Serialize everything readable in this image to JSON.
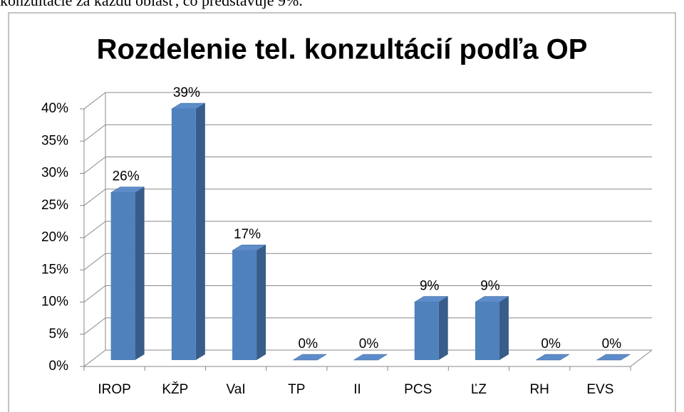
{
  "intro_text": "konzultácie za každú oblasť, čo predstavuje 9%.",
  "chart_data": {
    "type": "bar3d",
    "title": "Rozdelenie tel. konzultácií podľa OP",
    "categories": [
      "IROP",
      "KŽP",
      "VaI",
      "TP",
      "II",
      "PCS",
      "ĽZ",
      "RH",
      "EVS"
    ],
    "values": [
      26,
      39,
      17,
      0,
      0,
      9,
      9,
      0,
      0
    ],
    "value_labels": [
      "26%",
      "39%",
      "17%",
      "0%",
      "0%",
      "9%",
      "9%",
      "0%",
      "0%"
    ],
    "color": "#4f81bd",
    "ylim": [
      0,
      40
    ],
    "yticks": [
      {
        "value": 0,
        "label": "0%"
      },
      {
        "value": 5,
        "label": "5%"
      },
      {
        "value": 10,
        "label": "10%"
      },
      {
        "value": 15,
        "label": "15%"
      },
      {
        "value": 20,
        "label": "20%"
      },
      {
        "value": 25,
        "label": "25%"
      },
      {
        "value": 30,
        "label": "30%"
      },
      {
        "value": 35,
        "label": "35%"
      },
      {
        "value": 40,
        "label": "40%"
      }
    ],
    "grid": true
  }
}
